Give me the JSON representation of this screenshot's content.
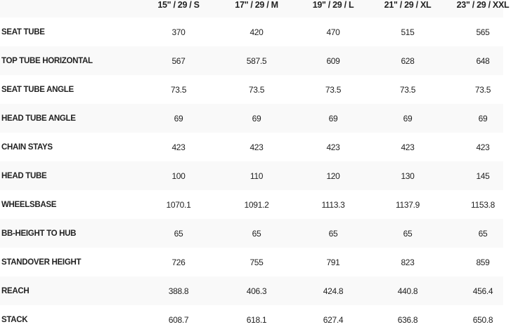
{
  "columns": [
    "15\" / 29 / S",
    "17\" / 29 / M",
    "19\" / 29 / L",
    "21\" / 29 / XL",
    "23\" / 29 / XXL"
  ],
  "rows": [
    {
      "label": "SEAT TUBE",
      "values": [
        "370",
        "420",
        "470",
        "515",
        "565"
      ]
    },
    {
      "label": "TOP TUBE HORIZONTAL",
      "values": [
        "567",
        "587.5",
        "609",
        "628",
        "648"
      ]
    },
    {
      "label": "SEAT TUBE ANGLE",
      "values": [
        "73.5",
        "73.5",
        "73.5",
        "73.5",
        "73.5"
      ]
    },
    {
      "label": "HEAD TUBE ANGLE",
      "values": [
        "69",
        "69",
        "69",
        "69",
        "69"
      ]
    },
    {
      "label": "CHAIN STAYS",
      "values": [
        "423",
        "423",
        "423",
        "423",
        "423"
      ]
    },
    {
      "label": "HEAD TUBE",
      "values": [
        "100",
        "110",
        "120",
        "130",
        "145"
      ]
    },
    {
      "label": "WHEELSBASE",
      "values": [
        "1070.1",
        "1091.2",
        "1113.3",
        "1137.9",
        "1153.8"
      ]
    },
    {
      "label": "BB-HEIGHT TO HUB",
      "values": [
        "65",
        "65",
        "65",
        "65",
        "65"
      ]
    },
    {
      "label": "STANDOVER HEIGHT",
      "values": [
        "726",
        "755",
        "791",
        "823",
        "859"
      ]
    },
    {
      "label": "REACH",
      "values": [
        "388.8",
        "406.3",
        "424.8",
        "440.8",
        "456.4"
      ]
    },
    {
      "label": "STACK",
      "values": [
        "608.7",
        "618.1",
        "627.4",
        "636.8",
        "650.8"
      ]
    }
  ]
}
